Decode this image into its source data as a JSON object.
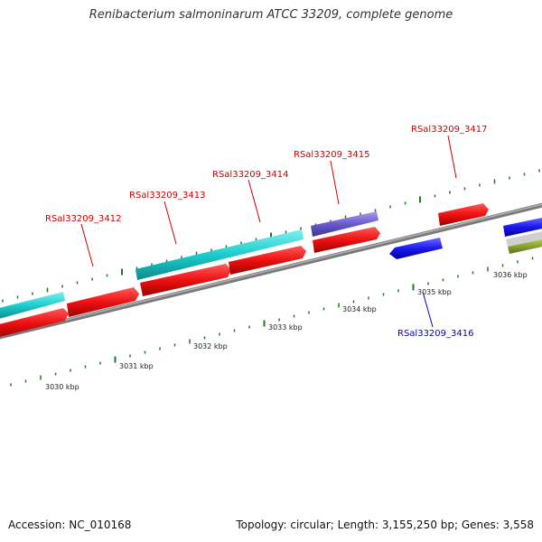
{
  "title": "Renibacterium salmoninarum ATCC 33209, complete genome",
  "footer": {
    "accession": "Accession: NC_010168",
    "summary": "Topology: circular; Length: 3,155,250 bp; Genes: 3,558"
  },
  "colors": {
    "backbone": "#8c8c8c",
    "cds": "#ee1111",
    "gene_cyan": "#1ccccc",
    "gene_purple": "#6a5acd",
    "gene_blue": "#1a1aee",
    "gene_olive": "#7a9a1c",
    "gene_grey": "#c8c8c8",
    "tick": "#1f7a1f",
    "label_red": "#cc0000",
    "label_blue": "#0000cc",
    "tick_label": "#222222"
  },
  "kbp_ticks": [
    "3030 kbp",
    "3031 kbp",
    "3032 kbp",
    "3033 kbp",
    "3034 kbp",
    "3035 kbp",
    "3036 kbp"
  ],
  "gene_labels": [
    {
      "id": "RSal33209_3412",
      "strand": "forward"
    },
    {
      "id": "RSal33209_3413",
      "strand": "forward"
    },
    {
      "id": "RSal33209_3414",
      "strand": "forward"
    },
    {
      "id": "RSal33209_3415",
      "strand": "forward"
    },
    {
      "id": "RSal33209_3417",
      "strand": "forward"
    },
    {
      "id": "RSal33209_3416",
      "strand": "reverse"
    }
  ]
}
